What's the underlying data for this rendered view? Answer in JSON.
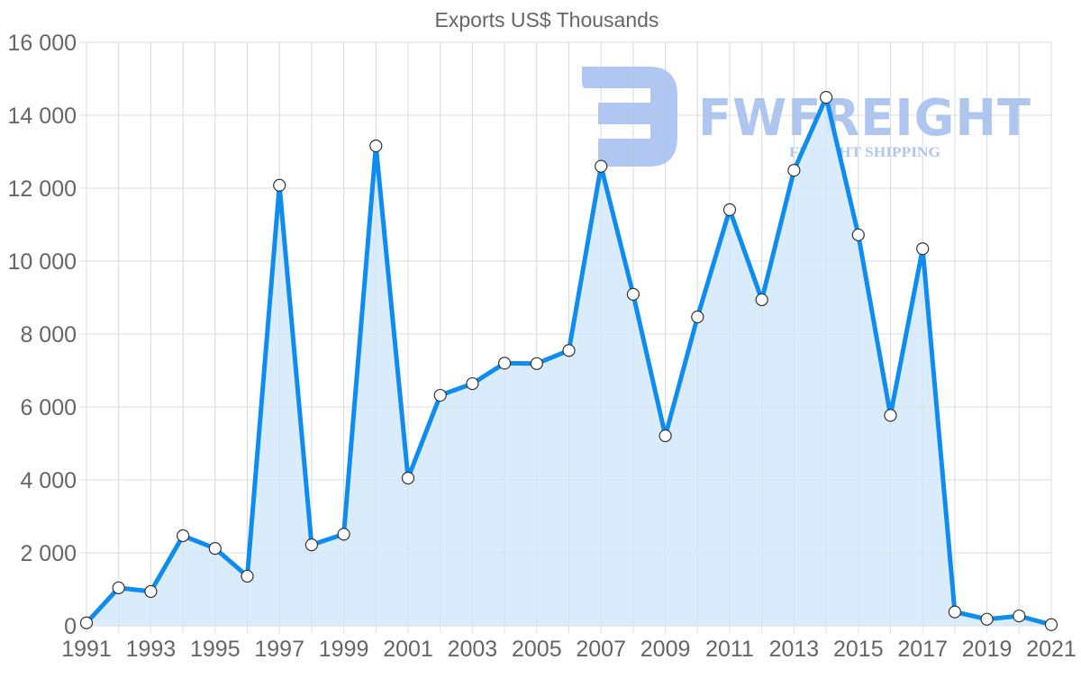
{
  "chart_data": {
    "type": "line",
    "title": "Exports US$ Thousands",
    "xlabel": "",
    "ylabel": "",
    "x": [
      1991,
      1992,
      1993,
      1994,
      1995,
      1996,
      1997,
      1998,
      1999,
      2000,
      2001,
      2002,
      2003,
      2004,
      2005,
      2006,
      2007,
      2008,
      2009,
      2010,
      2011,
      2012,
      2013,
      2014,
      2015,
      2016,
      2017,
      2018,
      2019,
      2020,
      2021
    ],
    "series": [
      {
        "name": "Exports US$ Thousands",
        "values": [
          80,
          1040,
          940,
          2470,
          2120,
          1360,
          12080,
          2220,
          2510,
          13160,
          4050,
          6320,
          6640,
          7200,
          7190,
          7550,
          12600,
          9090,
          5210,
          8470,
          11410,
          8940,
          12490,
          14490,
          10720,
          5770,
          10340,
          380,
          180,
          270,
          30
        ]
      }
    ],
    "ylim": [
      0,
      16000
    ],
    "yticks": [
      0,
      2000,
      4000,
      6000,
      8000,
      10000,
      12000,
      14000,
      16000
    ],
    "ytick_labels": [
      "0",
      "2 000",
      "4 000",
      "6 000",
      "8 000",
      "10 000",
      "12 000",
      "14 000",
      "16 000"
    ],
    "xtick_labels": [
      "1991",
      "1993",
      "1995",
      "1997",
      "1999",
      "2001",
      "2003",
      "2005",
      "2007",
      "2009",
      "2011",
      "2013",
      "2015",
      "2017",
      "2019",
      "2021"
    ],
    "grid": true,
    "filled_area": true,
    "legend": "none"
  },
  "colors": {
    "line": "#0f8cf0",
    "fill": "#d8ebfc",
    "grid": "#e0e0e0",
    "text": "#666666",
    "watermark": "#7fa6e8"
  },
  "watermark": {
    "brand": "FWFREIGHT",
    "tagline": "FREIGHT SHIPPING"
  }
}
